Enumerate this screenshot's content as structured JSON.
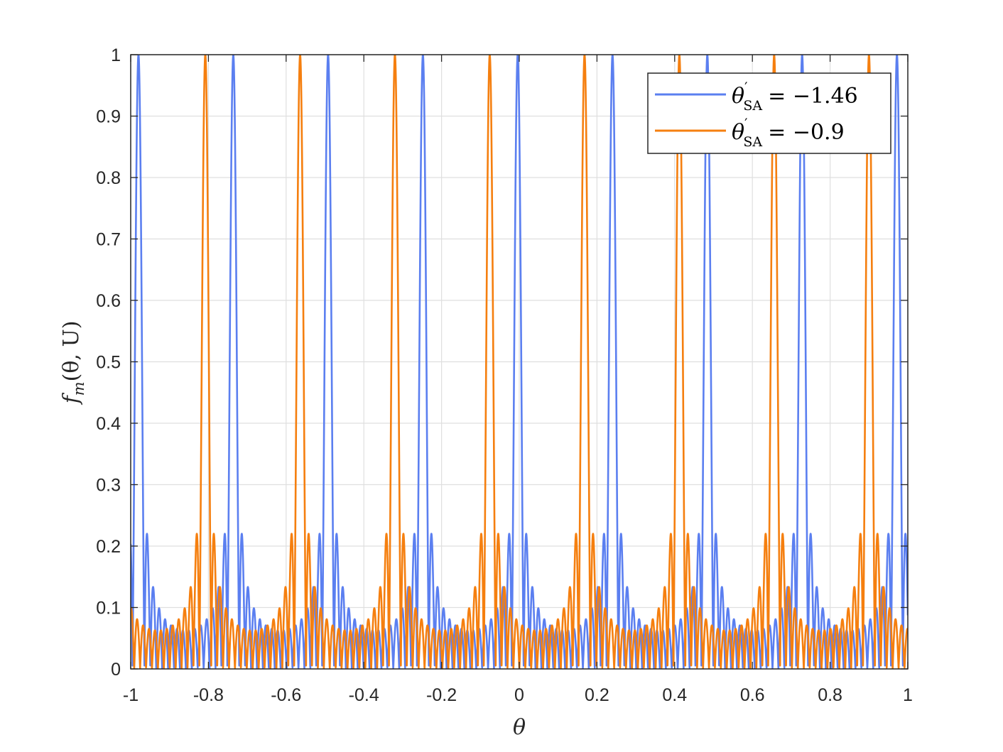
{
  "chart_data": {
    "type": "line",
    "title": "",
    "xlabel": "θ",
    "ylabel": "f_m(θ, U)",
    "ylabel_parts": {
      "base": "f",
      "sub": "m",
      "args": "(θ, U)"
    },
    "xlim": [
      -1,
      1
    ],
    "ylim": [
      0,
      1
    ],
    "xticks": [
      -1,
      -0.8,
      -0.6,
      -0.4,
      -0.2,
      0,
      0.2,
      0.4,
      0.6,
      0.8,
      1
    ],
    "xtick_labels": [
      "-1",
      "-0.8",
      "-0.6",
      "-0.4",
      "-0.2",
      "0",
      "0.2",
      "0.4",
      "0.6",
      "0.8",
      "1"
    ],
    "yticks": [
      0,
      0.1,
      0.2,
      0.3,
      0.4,
      0.5,
      0.6,
      0.7,
      0.8,
      0.9,
      1
    ],
    "ytick_labels": [
      "0",
      "0.1",
      "0.2",
      "0.3",
      "0.4",
      "0.5",
      "0.6",
      "0.7",
      "0.8",
      "0.9",
      "1"
    ],
    "grid": true,
    "legend_position": "top-right",
    "series": [
      {
        "name": "θ'SA = −1.46",
        "legend": {
          "symbol": "θ",
          "sup": "′",
          "sub": "SA",
          "rel": "= −1.46"
        },
        "color": "#5b7ff0",
        "n_elements": 16,
        "peak_positions": [
          -0.98,
          -0.736,
          -0.492,
          -0.248,
          0.0,
          0.244,
          0.488,
          0.732,
          0.976
        ],
        "peak_value": 1.0,
        "first_sidelobe": 0.22,
        "second_sidelobe": 0.135,
        "far_sidelobe": 0.06
      },
      {
        "name": "θ'SA = −0.9",
        "legend": {
          "symbol": "θ",
          "sup": "′",
          "sub": "SA",
          "rel": "= −0.9"
        },
        "color": "#f57f0f",
        "n_elements": 16,
        "peak_positions": [
          -0.808,
          -0.564,
          -0.32,
          -0.076,
          0.168,
          0.412,
          0.656,
          0.9
        ],
        "peak_value": 1.0,
        "first_sidelobe": 0.22,
        "second_sidelobe": 0.135,
        "far_sidelobe": 0.06
      }
    ]
  }
}
